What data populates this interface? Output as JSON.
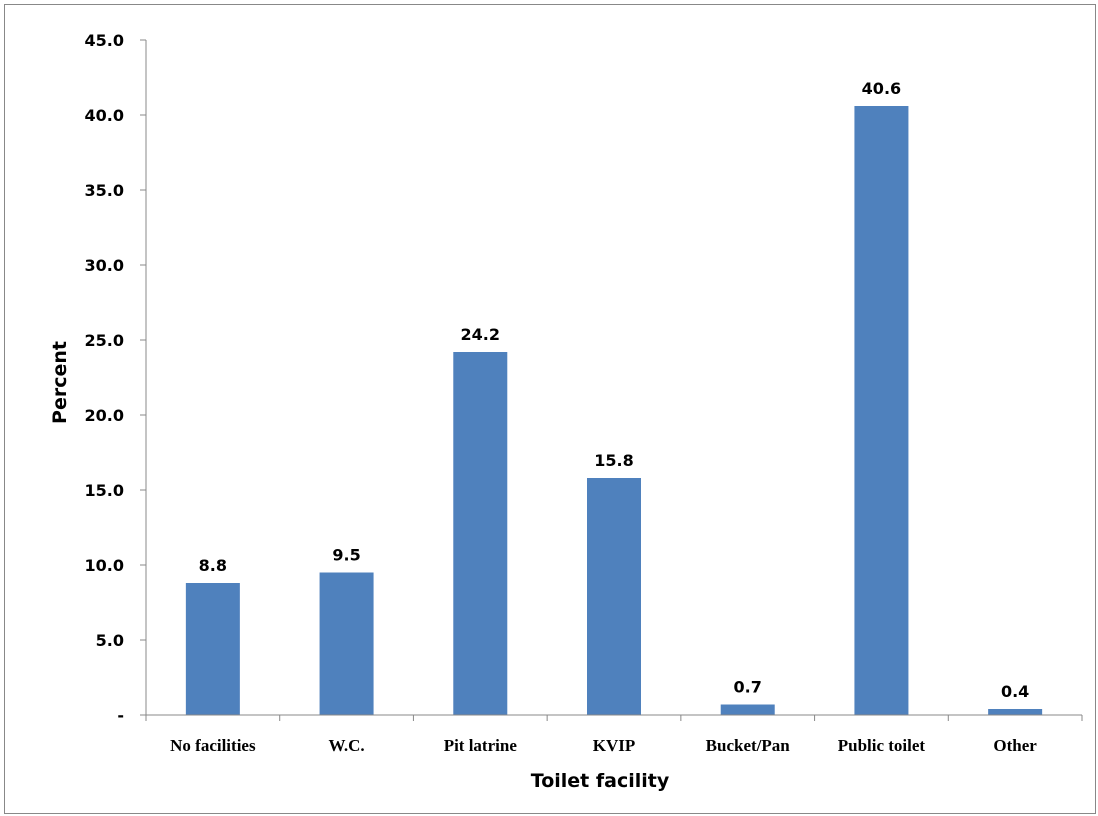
{
  "chart_data": {
    "type": "bar",
    "title": "",
    "xlabel": "Toilet facility",
    "ylabel": "Percent",
    "categories": [
      "No facilities",
      "W.C.",
      "Pit latrine",
      "KVIP",
      "Bucket/Pan",
      "Public toilet",
      "Other"
    ],
    "values": [
      8.8,
      9.5,
      24.2,
      15.8,
      0.7,
      40.6,
      0.4
    ],
    "data_labels": [
      "8.8",
      "9.5",
      "24.2",
      "15.8",
      "0.7",
      "40.6",
      "0.4"
    ],
    "ylim": [
      0,
      45
    ],
    "yticks": [
      0,
      5,
      10,
      15,
      20,
      25,
      30,
      35,
      40,
      45
    ],
    "ytick_labels": [
      "-",
      "5.0",
      "10.0",
      "15.0",
      "20.0",
      "25.0",
      "30.0",
      "35.0",
      "40.0",
      "45.0"
    ],
    "grid": false,
    "legend": "none",
    "bar_color": "#4F81BD"
  }
}
